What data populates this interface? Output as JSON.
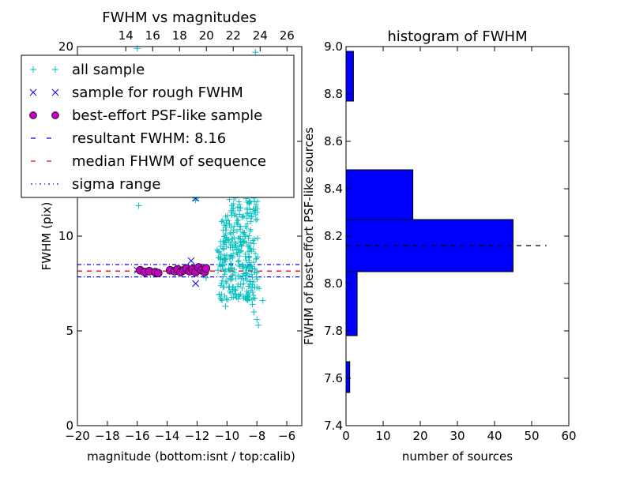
{
  "chart_data": [
    {
      "type": "scatter",
      "title": "FWHM vs magnitudes",
      "xlabel": "magnitude (bottom:isnt / top:calib)",
      "ylabel": "FWHM (pix)",
      "xlim": [
        -20,
        -5
      ],
      "ylim": [
        0,
        20
      ],
      "top_xlim": [
        10.4,
        27.1
      ],
      "x_ticks": [
        -20,
        -18,
        -16,
        -14,
        -12,
        -10,
        -8,
        -6
      ],
      "x_tick_labels": [
        "−20",
        "−18",
        "−16",
        "−14",
        "−12",
        "−10",
        "−8",
        "−6"
      ],
      "top_x_ticks": [
        14,
        16,
        18,
        20,
        22,
        24,
        26
      ],
      "top_x_tick_labels": [
        "14",
        "16",
        "18",
        "20",
        "22",
        "24",
        "26"
      ],
      "y_ticks": [
        0,
        5,
        10,
        15,
        20
      ],
      "y_tick_labels": [
        "0",
        "5",
        "10",
        "15",
        "20"
      ],
      "grid": false,
      "legend_position": "top-left",
      "legend": [
        {
          "label": "all sample",
          "marker": "+",
          "color": "#00bfbf"
        },
        {
          "label": "sample for rough FWHM",
          "marker": "x",
          "color": "#0000ff"
        },
        {
          "label": "best-effort PSF-like sample",
          "marker": "o",
          "color": "#bf00bf"
        },
        {
          "label": "resultant FWHM: 8.16",
          "linestyle": "dashed",
          "color": "#0000ff"
        },
        {
          "label": "median FHWM of sequence",
          "linestyle": "dashed",
          "color": "#ff0000"
        },
        {
          "label": "sigma range",
          "linestyle": "dashdot",
          "color": "#0000ff"
        }
      ],
      "series": [
        {
          "name": "all sample",
          "x": [
            -15.9,
            -16.0,
            -12.1,
            -12.1,
            -8.1,
            -10.1,
            -11.4,
            -10.6,
            -8.3,
            -8.6,
            -8.2,
            -8.0,
            -7.9,
            -8.0,
            -7.6,
            -8.3
          ],
          "y": [
            11.6,
            19.9,
            12.0,
            11.9,
            19.7,
            6.3,
            7.8,
            8.2,
            6.4,
            6.8,
            6.0,
            5.6,
            5.3,
            7.3,
            6.6,
            8.3
          ]
        },
        {
          "name": "sample for rough FWHM",
          "x": [
            -12.4,
            -12.1,
            -12.1,
            -16.0
          ],
          "y": [
            8.7,
            7.5,
            12.0,
            8.2
          ]
        },
        {
          "name": "best-effort PSF-like sample",
          "x": [
            -15.8,
            -15.5,
            -15.2,
            -14.8,
            -14.6,
            -13.8,
            -13.5,
            -13.3,
            -13.1,
            -12.9,
            -12.7,
            -12.5,
            -12.3,
            -12.1,
            -11.9,
            -11.7,
            -11.5,
            -11.4
          ],
          "y": [
            8.2,
            8.1,
            8.15,
            8.1,
            8.05,
            8.2,
            8.15,
            8.25,
            8.1,
            8.2,
            8.3,
            8.15,
            8.25,
            8.1,
            8.35,
            8.2,
            8.1,
            8.3
          ]
        }
      ],
      "reference_lines": [
        {
          "name": "resultant FWHM: 8.16",
          "y": 8.16,
          "style": "dashed",
          "color": "#0000ff"
        },
        {
          "name": "median FHWM of sequence",
          "y": 8.16,
          "style": "dashed",
          "color": "#ff0000"
        },
        {
          "name": "sigma range upper",
          "y": 8.5,
          "style": "dashdot",
          "color": "#0000ff"
        },
        {
          "name": "sigma range lower",
          "y": 7.85,
          "style": "dashdot",
          "color": "#0000ff"
        }
      ]
    },
    {
      "type": "bar",
      "orientation": "horizontal",
      "title": "histogram of FWHM",
      "xlabel": "number of sources",
      "ylabel": "FWHM of best-effort PSF-like sources",
      "xlim": [
        0,
        60
      ],
      "ylim": [
        7.4,
        9.0
      ],
      "x_ticks": [
        0,
        10,
        20,
        30,
        40,
        50,
        60
      ],
      "x_tick_labels": [
        "0",
        "10",
        "20",
        "30",
        "40",
        "50",
        "60"
      ],
      "y_ticks": [
        7.4,
        7.6,
        7.8,
        8.0,
        8.2,
        8.4,
        8.6,
        8.8,
        9.0
      ],
      "y_tick_labels": [
        "7.4",
        "7.6",
        "7.8",
        "8.0",
        "8.2",
        "8.4",
        "8.6",
        "8.8",
        "9.0"
      ],
      "grid": false,
      "bar_color": "#0000ff",
      "bins": [
        {
          "y0": 7.54,
          "y1": 7.67,
          "count": 1
        },
        {
          "y0": 7.78,
          "y1": 8.05,
          "count": 3
        },
        {
          "y0": 8.05,
          "y1": 8.27,
          "count": 45
        },
        {
          "y0": 8.27,
          "y1": 8.48,
          "count": 18
        },
        {
          "y0": 8.77,
          "y1": 8.98,
          "count": 2
        }
      ],
      "reference_line": {
        "y": 8.16,
        "x_end": 54,
        "style": "dashed",
        "color": "#000000"
      }
    }
  ]
}
